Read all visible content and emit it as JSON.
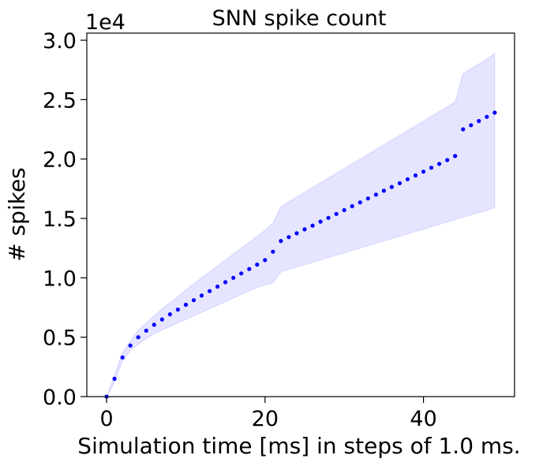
{
  "chart_data": {
    "type": "scatter",
    "title": "SNN spike count",
    "xlabel": "Simulation time [ms] in steps of 1.0 ms.",
    "ylabel": "# spikes",
    "y_offset_label": "1e4",
    "xlim": [
      -2.5,
      51.5
    ],
    "ylim": [
      0,
      3.06
    ],
    "xticks": [
      0,
      20,
      40
    ],
    "xtick_labels": [
      "0",
      "20",
      "40"
    ],
    "yticks": [
      0.0,
      0.5,
      1.0,
      1.5,
      2.0,
      2.5,
      3.0
    ],
    "ytick_labels": [
      "0.0",
      "0.5",
      "1.0",
      "1.5",
      "2.0",
      "2.5",
      "3.0"
    ],
    "grid": false,
    "marker_color": "#0000ff",
    "band_color": "#0000ff",
    "x": [
      0,
      1,
      2,
      3,
      4,
      5,
      6,
      7,
      8,
      9,
      10,
      11,
      12,
      13,
      14,
      15,
      16,
      17,
      18,
      19,
      20,
      21,
      22,
      23,
      24,
      25,
      26,
      27,
      28,
      29,
      30,
      31,
      32,
      33,
      34,
      35,
      36,
      37,
      38,
      39,
      40,
      41,
      42,
      43,
      44,
      45,
      46,
      47,
      48,
      49
    ],
    "series": [
      {
        "values": [
          0.0,
          0.15,
          0.33,
          0.43,
          0.5,
          0.555,
          0.605,
          0.65,
          0.693,
          0.733,
          0.773,
          0.812,
          0.85,
          0.888,
          0.926,
          0.963,
          1.0,
          1.037,
          1.074,
          1.111,
          1.149,
          1.22,
          1.31,
          1.343,
          1.375,
          1.408,
          1.44,
          1.473,
          1.505,
          1.538,
          1.57,
          1.603,
          1.635,
          1.668,
          1.7,
          1.733,
          1.765,
          1.797,
          1.83,
          1.862,
          1.894,
          1.927,
          1.959,
          1.991,
          2.025,
          2.25,
          2.285,
          2.32,
          2.355,
          2.39
        ],
        "lower": [
          0.0,
          0.12,
          0.3,
          0.39,
          0.44,
          0.49,
          0.53,
          0.56,
          0.59,
          0.62,
          0.65,
          0.68,
          0.71,
          0.74,
          0.77,
          0.8,
          0.83,
          0.86,
          0.89,
          0.92,
          0.94,
          0.96,
          1.05,
          1.07,
          1.09,
          1.11,
          1.13,
          1.15,
          1.17,
          1.19,
          1.21,
          1.23,
          1.25,
          1.27,
          1.29,
          1.31,
          1.33,
          1.35,
          1.37,
          1.39,
          1.41,
          1.43,
          1.45,
          1.47,
          1.49,
          1.51,
          1.53,
          1.55,
          1.57,
          1.59
        ],
        "upper": [
          0.0,
          0.18,
          0.37,
          0.47,
          0.56,
          0.62,
          0.68,
          0.74,
          0.79,
          0.84,
          0.9,
          0.95,
          1.0,
          1.05,
          1.1,
          1.15,
          1.2,
          1.25,
          1.3,
          1.35,
          1.4,
          1.46,
          1.6,
          1.64,
          1.68,
          1.72,
          1.76,
          1.8,
          1.84,
          1.88,
          1.92,
          1.96,
          2.0,
          2.04,
          2.08,
          2.12,
          2.16,
          2.2,
          2.24,
          2.28,
          2.32,
          2.36,
          2.4,
          2.44,
          2.48,
          2.72,
          2.76,
          2.8,
          2.84,
          2.89
        ]
      }
    ]
  }
}
